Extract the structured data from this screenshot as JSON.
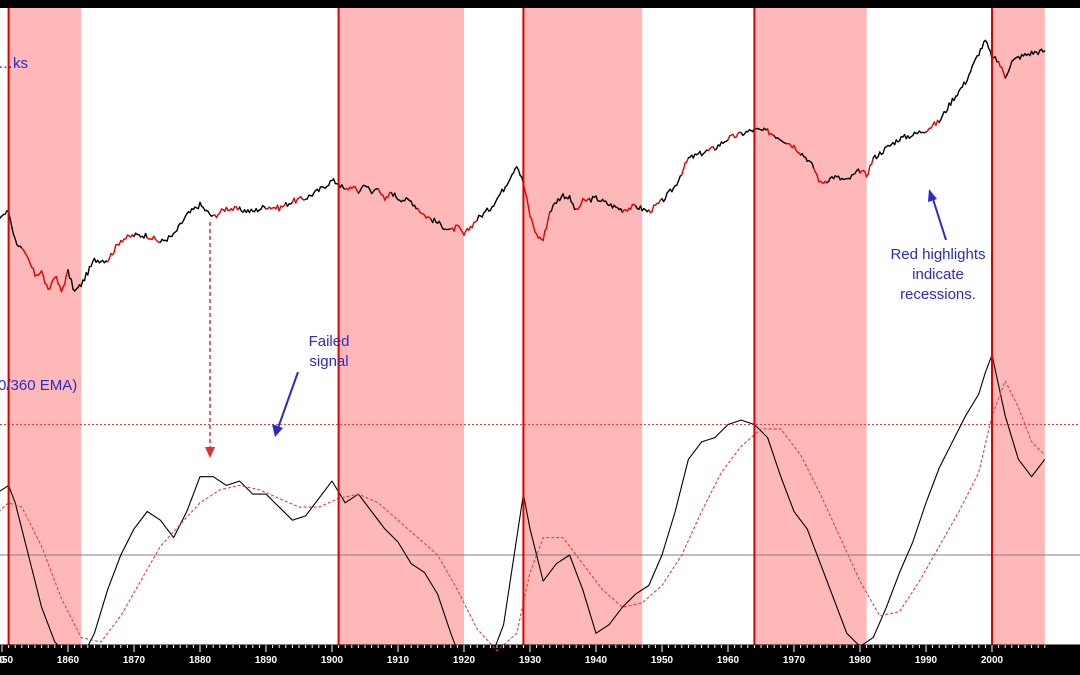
{
  "chart_data": [
    {
      "type": "line",
      "title": "…ks",
      "x_range": [
        1840,
        2008
      ],
      "y_scale": "log",
      "series": [
        {
          "color": "#000000",
          "highlight_color": "#e00000",
          "x": [
            1840,
            1841,
            1842,
            1843,
            1845,
            1848,
            1850,
            1851,
            1852,
            1854,
            1855,
            1856,
            1857,
            1858,
            1859,
            1860,
            1861,
            1862,
            1864,
            1866,
            1868,
            1870,
            1872,
            1874,
            1876,
            1878,
            1880,
            1881,
            1882,
            1884,
            1886,
            1888,
            1890,
            1892,
            1894,
            1896,
            1898,
            1900,
            1901,
            1902,
            1903,
            1904,
            1905,
            1906,
            1907,
            1908,
            1909,
            1910,
            1912,
            1914,
            1916,
            1918,
            1919,
            1920,
            1921,
            1922,
            1924,
            1926,
            1928,
            1929,
            1930,
            1931,
            1932,
            1933,
            1934,
            1935,
            1936,
            1937,
            1938,
            1940,
            1942,
            1944,
            1946,
            1948,
            1950,
            1952,
            1954,
            1956,
            1958,
            1960,
            1962,
            1964,
            1966,
            1968,
            1970,
            1972,
            1973,
            1974,
            1976,
            1978,
            1980,
            1981,
            1982,
            1984,
            1986,
            1988,
            1990,
            1992,
            1994,
            1996,
            1998,
            1999,
            2000,
            2001,
            2002,
            2003,
            2004,
            2006,
            2008
          ],
          "y": [
            55,
            38,
            52,
            50,
            52,
            54,
            60,
            62,
            48,
            40,
            35,
            36,
            30,
            35,
            30,
            36,
            30,
            32,
            40,
            40,
            48,
            50,
            50,
            47,
            50,
            60,
            66,
            62,
            59,
            64,
            63,
            62,
            65,
            64,
            68,
            70,
            75,
            82,
            80,
            75,
            78,
            74,
            80,
            73,
            78,
            68,
            74,
            70,
            68,
            60,
            56,
            52,
            54,
            50,
            54,
            58,
            64,
            76,
            95,
            80,
            60,
            50,
            48,
            62,
            68,
            72,
            70,
            62,
            68,
            70,
            66,
            63,
            65,
            62,
            68,
            78,
            100,
            105,
            110,
            120,
            125,
            130,
            128,
            120,
            112,
            100,
            92,
            80,
            85,
            82,
            90,
            86,
            100,
            110,
            120,
            124,
            130,
            140,
            170,
            200,
            260,
            290,
            250,
            240,
            210,
            240,
            250,
            260,
            265
          ],
          "highlights": [
            [
              1853,
              1860
            ],
            [
              1866,
              1870
            ],
            [
              1872,
              1874
            ],
            [
              1882,
              1886
            ],
            [
              1890,
              1893
            ],
            [
              1894,
              1896
            ],
            [
              1902,
              1904
            ],
            [
              1907,
              1909
            ],
            [
              1913,
              1915
            ],
            [
              1918,
              1922
            ],
            [
              1929,
              1933
            ],
            [
              1937,
              1939
            ],
            [
              1944,
              1946
            ],
            [
              1948,
              1950
            ],
            [
              1953,
              1954
            ],
            [
              1957,
              1958
            ],
            [
              1960,
              1962
            ],
            [
              1966,
              1967
            ],
            [
              1969,
              1971
            ],
            [
              1973,
              1975
            ],
            [
              1980,
              1982
            ],
            [
              1990,
              1992
            ],
            [
              2001,
              2002
            ]
          ]
        }
      ],
      "annotations": [
        {
          "lines": [
            "Red highlights",
            "indicate",
            "recessions."
          ],
          "color": "#2a2acc"
        }
      ]
    },
    {
      "type": "line",
      "title": "0/360 EMA)",
      "x_range": [
        1840,
        2008
      ],
      "xlabel": "",
      "ylabel": "",
      "x_ticks": [
        "1850",
        "1860",
        "1870",
        "1880",
        "1890",
        "1900",
        "1910",
        "1920",
        "1930",
        "1940",
        "1950",
        "1960",
        "1970",
        "1980",
        "1990",
        "2000"
      ],
      "y_range": [
        -1.5,
        3
      ],
      "zero_line": 0,
      "threshold_line": 1.5,
      "series": [
        {
          "color": "#000000",
          "dash": "solid",
          "x": [
            1840,
            1842,
            1844,
            1846,
            1848,
            1850,
            1851,
            1852,
            1854,
            1856,
            1858,
            1860,
            1862,
            1864,
            1866,
            1868,
            1870,
            1872,
            1874,
            1876,
            1878,
            1880,
            1882,
            1884,
            1886,
            1888,
            1890,
            1892,
            1894,
            1896,
            1898,
            1900,
            1902,
            1904,
            1906,
            1908,
            1910,
            1912,
            1914,
            1916,
            1918,
            1920,
            1922,
            1924,
            1926,
            1928,
            1929,
            1930,
            1932,
            1934,
            1936,
            1938,
            1940,
            1942,
            1944,
            1946,
            1948,
            1950,
            1952,
            1954,
            1956,
            1958,
            1960,
            1962,
            1964,
            1966,
            1968,
            1970,
            1972,
            1974,
            1976,
            1978,
            1980,
            1982,
            1984,
            1986,
            1988,
            1990,
            1992,
            1994,
            1996,
            1998,
            1999,
            2000,
            2002,
            2004,
            2006,
            2008
          ],
          "y": [
            -0.4,
            0.2,
            0.5,
            0.6,
            0.65,
            0.75,
            0.8,
            0.6,
            0.0,
            -0.6,
            -1.0,
            -1.15,
            -1.2,
            -0.9,
            -0.4,
            0.0,
            0.3,
            0.5,
            0.4,
            0.2,
            0.5,
            0.9,
            0.9,
            0.8,
            0.85,
            0.7,
            0.7,
            0.55,
            0.4,
            0.45,
            0.65,
            0.85,
            0.6,
            0.7,
            0.5,
            0.3,
            0.15,
            -0.1,
            -0.2,
            -0.45,
            -0.9,
            -1.3,
            -1.35,
            -1.2,
            -0.8,
            0.2,
            0.7,
            0.3,
            -0.3,
            -0.1,
            0.0,
            -0.4,
            -0.9,
            -0.8,
            -0.6,
            -0.45,
            -0.35,
            0.0,
            0.5,
            1.1,
            1.3,
            1.35,
            1.5,
            1.55,
            1.5,
            1.35,
            0.9,
            0.5,
            0.3,
            -0.1,
            -0.5,
            -0.9,
            -1.05,
            -0.95,
            -0.6,
            -0.2,
            0.15,
            0.6,
            1.0,
            1.3,
            1.6,
            1.85,
            2.1,
            2.3,
            1.6,
            1.1,
            0.9,
            1.1
          ]
        },
        {
          "color": "#e04040",
          "dash": "dotted",
          "x": [
            1840,
            1844,
            1848,
            1851,
            1853,
            1856,
            1859,
            1862,
            1865,
            1868,
            1871,
            1874,
            1877,
            1880,
            1883,
            1886,
            1889,
            1892,
            1895,
            1898,
            1901,
            1904,
            1907,
            1910,
            1913,
            1916,
            1919,
            1922,
            1925,
            1928,
            1930,
            1932,
            1935,
            1938,
            1941,
            1944,
            1947,
            1950,
            1953,
            1956,
            1959,
            1962,
            1965,
            1968,
            1971,
            1974,
            1977,
            1980,
            1983,
            1986,
            1989,
            1992,
            1995,
            1998,
            2000,
            2002,
            2004,
            2006,
            2008
          ],
          "y": [
            -0.6,
            0.0,
            0.4,
            0.6,
            0.55,
            0.1,
            -0.5,
            -0.95,
            -1.0,
            -0.7,
            -0.3,
            0.1,
            0.35,
            0.6,
            0.75,
            0.8,
            0.75,
            0.65,
            0.55,
            0.55,
            0.65,
            0.7,
            0.6,
            0.4,
            0.2,
            0.0,
            -0.4,
            -0.85,
            -1.1,
            -0.9,
            -0.2,
            0.2,
            0.2,
            -0.1,
            -0.4,
            -0.6,
            -0.55,
            -0.35,
            0.0,
            0.5,
            0.95,
            1.25,
            1.45,
            1.45,
            1.15,
            0.7,
            0.2,
            -0.3,
            -0.7,
            -0.65,
            -0.3,
            0.1,
            0.5,
            0.95,
            1.6,
            2.0,
            1.7,
            1.3,
            1.15
          ]
        }
      ],
      "annotations": [
        {
          "lines": [
            "Failed",
            "signal"
          ],
          "color": "#2a2acc"
        }
      ]
    }
  ],
  "colors": {
    "recession_band": "#ffb8b8",
    "signal_line": "#dd0000",
    "zero_line": "#808080",
    "annotation_text": "#2a2acc"
  },
  "recession_bands": [
    [
      1851,
      1862
    ],
    [
      1901,
      1920
    ],
    [
      1929,
      1947
    ],
    [
      1964,
      1981
    ],
    [
      2000,
      2008
    ]
  ],
  "signal_lines": [
    1851,
    1901,
    1929,
    1964,
    2000
  ],
  "failed_signal_year": 1880
}
